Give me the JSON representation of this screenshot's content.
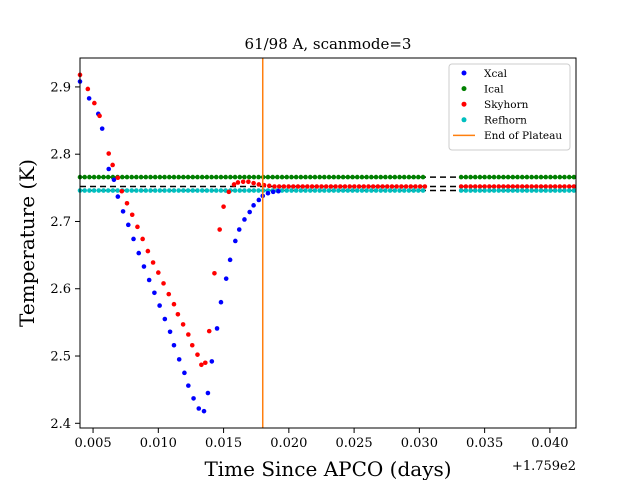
{
  "chart_data": {
    "type": "scatter",
    "title": "61/98 A, scanmode=3",
    "xlabel": "Time Since APCO (days)",
    "ylabel": "Temperature (K)",
    "x_offset_label": "+1.759e2",
    "xlim": [
      0.004,
      0.042
    ],
    "ylim": [
      2.393,
      2.943
    ],
    "x_ticks": [
      0.005,
      0.01,
      0.015,
      0.02,
      0.025,
      0.03,
      0.035,
      0.04
    ],
    "x_tick_labels": [
      "0.005",
      "0.010",
      "0.015",
      "0.020",
      "0.025",
      "0.030",
      "0.035",
      "0.040"
    ],
    "y_ticks": [
      2.4,
      2.5,
      2.6,
      2.7,
      2.8,
      2.9
    ],
    "y_tick_labels": [
      "2.4",
      "2.5",
      "2.6",
      "2.7",
      "2.8",
      "2.9"
    ],
    "legend_position": "top-right",
    "legend": [
      {
        "label": "Xcal",
        "color": "#0000ff",
        "kind": "dot"
      },
      {
        "label": "Ical",
        "color": "#008000",
        "kind": "dot"
      },
      {
        "label": "Skyhorn",
        "color": "#ff0000",
        "kind": "dot"
      },
      {
        "label": "Refhorn",
        "color": "#00bfbf",
        "kind": "dot"
      },
      {
        "label": "End of Plateau",
        "color": "#ff7f0e",
        "kind": "line"
      }
    ],
    "vline": {
      "x": 0.018,
      "color": "#ff7f0e"
    },
    "reference_lines": [
      {
        "y": 2.766,
        "color": "#000000",
        "style": "dashed"
      },
      {
        "y": 2.752,
        "color": "#000000",
        "style": "dashed"
      },
      {
        "y": 2.746,
        "color": "#000000",
        "style": "dashed"
      }
    ],
    "series": [
      {
        "name": "Xcal",
        "color": "#0000ff",
        "points": [
          [
            0.004,
            2.908
          ],
          [
            0.0047,
            2.883
          ],
          [
            0.0054,
            2.86
          ],
          [
            0.0057,
            2.838
          ],
          [
            0.0062,
            2.778
          ],
          [
            0.0066,
            2.762
          ],
          [
            0.0069,
            2.737
          ],
          [
            0.0073,
            2.715
          ],
          [
            0.0077,
            2.695
          ],
          [
            0.0081,
            2.674
          ],
          [
            0.0085,
            2.653
          ],
          [
            0.0089,
            2.633
          ],
          [
            0.0093,
            2.613
          ],
          [
            0.0097,
            2.594
          ],
          [
            0.0101,
            2.575
          ],
          [
            0.0105,
            2.555
          ],
          [
            0.0109,
            2.536
          ],
          [
            0.0112,
            2.516
          ],
          [
            0.0116,
            2.495
          ],
          [
            0.012,
            2.475
          ],
          [
            0.0123,
            2.456
          ],
          [
            0.0127,
            2.437
          ],
          [
            0.0131,
            2.422
          ],
          [
            0.0135,
            2.418
          ],
          [
            0.0138,
            2.445
          ],
          [
            0.0141,
            2.492
          ],
          [
            0.0145,
            2.541
          ],
          [
            0.0148,
            2.58
          ],
          [
            0.0152,
            2.615
          ],
          [
            0.0155,
            2.643
          ],
          [
            0.0159,
            2.671
          ],
          [
            0.0162,
            2.688
          ],
          [
            0.0166,
            2.703
          ],
          [
            0.017,
            2.714
          ],
          [
            0.0173,
            2.724
          ],
          [
            0.0177,
            2.732
          ],
          [
            0.018,
            2.738
          ],
          [
            0.0184,
            2.742
          ],
          [
            0.0188,
            2.744
          ],
          [
            0.0192,
            2.745
          ]
        ]
      },
      {
        "name": "Skyhorn",
        "color": "#ff0000",
        "points": [
          [
            0.004,
            2.918
          ],
          [
            0.0046,
            2.897
          ],
          [
            0.0051,
            2.876
          ],
          [
            0.0055,
            2.857
          ],
          [
            0.0062,
            2.801
          ],
          [
            0.0065,
            2.784
          ],
          [
            0.0069,
            2.765
          ],
          [
            0.0072,
            2.745
          ],
          [
            0.0076,
            2.727
          ],
          [
            0.008,
            2.71
          ],
          [
            0.0084,
            2.692
          ],
          [
            0.0088,
            2.674
          ],
          [
            0.0092,
            2.656
          ],
          [
            0.0096,
            2.639
          ],
          [
            0.01,
            2.624
          ],
          [
            0.0104,
            2.608
          ],
          [
            0.0108,
            2.592
          ],
          [
            0.0112,
            2.577
          ],
          [
            0.0115,
            2.562
          ],
          [
            0.0119,
            2.547
          ],
          [
            0.0123,
            2.532
          ],
          [
            0.0126,
            2.516
          ],
          [
            0.013,
            2.502
          ],
          [
            0.0133,
            2.487
          ],
          [
            0.0136,
            2.49
          ],
          [
            0.0139,
            2.537
          ],
          [
            0.0143,
            2.623
          ],
          [
            0.0147,
            2.688
          ],
          [
            0.015,
            2.722
          ],
          [
            0.0154,
            2.744
          ],
          [
            0.0158,
            2.755
          ],
          [
            0.0161,
            2.758
          ],
          [
            0.0165,
            2.759
          ],
          [
            0.0169,
            2.759
          ],
          [
            0.0173,
            2.757
          ],
          [
            0.0177,
            2.755
          ],
          [
            0.0181,
            2.754
          ],
          [
            0.0185,
            2.753
          ]
        ]
      }
    ],
    "flat_series": [
      {
        "name": "Ical",
        "color": "#008000",
        "y": 2.766,
        "segments": [
          [
            0.004,
            0.0306
          ],
          [
            0.0332,
            0.042
          ]
        ],
        "step": 0.00036
      },
      {
        "name": "Skyhorn",
        "color": "#ff0000",
        "y": 2.752,
        "segments": [
          [
            0.0189,
            0.0306
          ],
          [
            0.0332,
            0.042
          ]
        ],
        "step": 0.00036
      },
      {
        "name": "Refhorn",
        "color": "#00bfbf",
        "y": 2.746,
        "segments": [
          [
            0.004,
            0.0306
          ],
          [
            0.0332,
            0.042
          ]
        ],
        "step": 0.00036
      }
    ]
  }
}
